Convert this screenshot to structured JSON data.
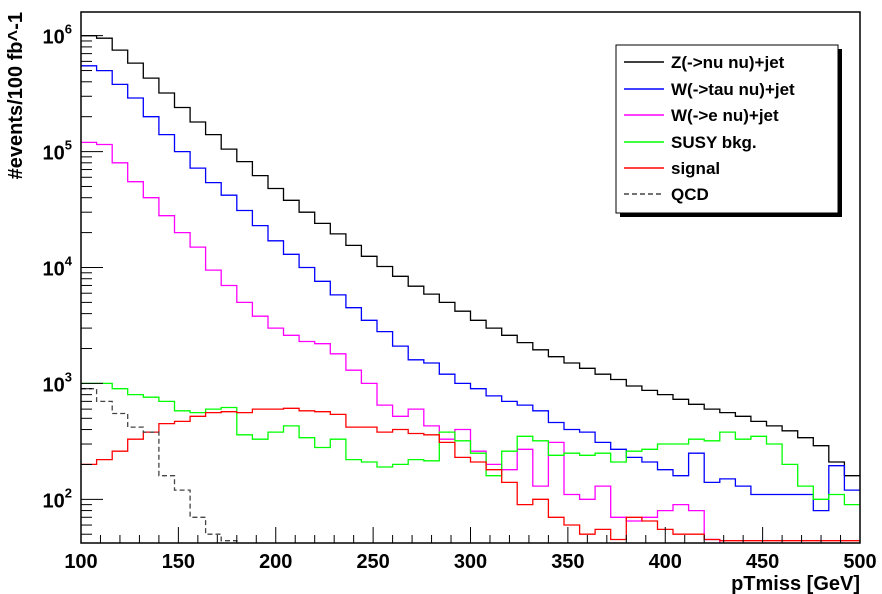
{
  "chart_data": {
    "type": "line",
    "title": "",
    "xlabel": "pTmiss [GeV]",
    "ylabel": "#events/100 fb^-1",
    "xlim": [
      100,
      500
    ],
    "ylim": [
      42,
      1600000
    ],
    "yscale": "log",
    "legend_placement": "top-right",
    "grid": false,
    "xticks": [
      "100",
      "150",
      "200",
      "250",
      "300",
      "350",
      "400",
      "450",
      "500"
    ],
    "yticks": [
      {
        "value": 100,
        "base": "10",
        "exp": "2"
      },
      {
        "value": 1000,
        "base": "10",
        "exp": "3"
      },
      {
        "value": 10000,
        "base": "10",
        "exp": "4"
      },
      {
        "value": 100000,
        "base": "10",
        "exp": "5"
      },
      {
        "value": 1000000,
        "base": "10",
        "exp": "6"
      }
    ],
    "bin_edges": [
      100,
      108,
      116,
      124,
      132,
      140,
      148,
      156,
      164,
      172,
      180,
      188,
      196,
      204,
      212,
      220,
      228,
      236,
      244,
      252,
      260,
      268,
      276,
      284,
      292,
      300,
      308,
      316,
      324,
      332,
      340,
      348,
      356,
      364,
      372,
      380,
      388,
      396,
      404,
      412,
      420,
      428,
      436,
      444,
      452,
      460,
      468,
      476,
      484,
      492,
      500
    ],
    "series": [
      {
        "name": "Z(->nu nu)+jet",
        "color": "#000000",
        "dash": false,
        "values": [
          1000000,
          950000,
          750000,
          580000,
          430000,
          320000,
          240000,
          180000,
          140000,
          105000,
          82000,
          62000,
          48000,
          38000,
          30000,
          24000,
          19500,
          15500,
          12500,
          10200,
          8400,
          6900,
          5900,
          5000,
          4200,
          3500,
          3000,
          2600,
          2250,
          1950,
          1700,
          1500,
          1350,
          1200,
          1080,
          950,
          870,
          800,
          730,
          660,
          600,
          560,
          520,
          470,
          430,
          390,
          340,
          290,
          210,
          160
        ]
      },
      {
        "name": "W(->tau nu)+jet",
        "color": "#0000ff",
        "dash": false,
        "values": [
          550000,
          500000,
          380000,
          290000,
          200000,
          140000,
          100000,
          72000,
          54000,
          42000,
          31000,
          23000,
          17000,
          13000,
          10000,
          7600,
          5800,
          4500,
          3500,
          2800,
          2100,
          1600,
          1500,
          1200,
          1000,
          900,
          780,
          700,
          650,
          580,
          460,
          400,
          380,
          310,
          270,
          230,
          210,
          180,
          160,
          250,
          140,
          150,
          130,
          110,
          110,
          110,
          110,
          80,
          195,
          120
        ]
      },
      {
        "name": "W(->e nu)+jet",
        "color": "#ff00ff",
        "dash": false,
        "values": [
          120000,
          115000,
          80000,
          55000,
          40000,
          28000,
          20000,
          15000,
          9500,
          7000,
          5000,
          3800,
          3000,
          2600,
          2300,
          2200,
          1800,
          1300,
          1000,
          650,
          520,
          600,
          430,
          330,
          400,
          260,
          200,
          180,
          270,
          130,
          310,
          110,
          100,
          130,
          70,
          65,
          70,
          80,
          90,
          80,
          45,
          0,
          0,
          0,
          0,
          0,
          0,
          0,
          0,
          0
        ]
      },
      {
        "name": "SUSY bkg.",
        "color": "#00ff00",
        "dash": false,
        "values": [
          1000,
          1000,
          900,
          800,
          760,
          700,
          580,
          560,
          600,
          620,
          360,
          330,
          380,
          430,
          340,
          280,
          330,
          220,
          210,
          190,
          200,
          220,
          215,
          380,
          320,
          250,
          160,
          260,
          350,
          320,
          240,
          250,
          240,
          250,
          210,
          260,
          270,
          300,
          300,
          330,
          320,
          380,
          330,
          350,
          300,
          200,
          130,
          100,
          110,
          90
        ]
      },
      {
        "name": "signal",
        "color": "#ff0000",
        "dash": false,
        "values": [
          200,
          220,
          260,
          330,
          380,
          450,
          470,
          520,
          560,
          570,
          560,
          600,
          600,
          610,
          580,
          570,
          540,
          420,
          420,
          380,
          400,
          370,
          360,
          310,
          230,
          210,
          180,
          140,
          90,
          100,
          70,
          60,
          50,
          55,
          45,
          70,
          65,
          55,
          50,
          50,
          45,
          44,
          44,
          44,
          44,
          44,
          44,
          44,
          44,
          44
        ]
      },
      {
        "name": "QCD",
        "color": "#444444",
        "dash": true,
        "values": [
          900,
          700,
          550,
          420,
          380,
          160,
          120,
          70,
          50,
          44,
          0,
          0,
          0,
          0,
          0,
          0,
          0,
          0,
          0,
          0,
          0,
          0,
          0,
          0,
          0,
          0,
          0,
          0,
          0,
          0,
          0,
          0,
          0,
          0,
          0,
          0,
          0,
          0,
          0,
          0,
          0,
          0,
          0,
          0,
          0,
          0,
          0,
          0,
          0,
          0
        ]
      }
    ]
  }
}
